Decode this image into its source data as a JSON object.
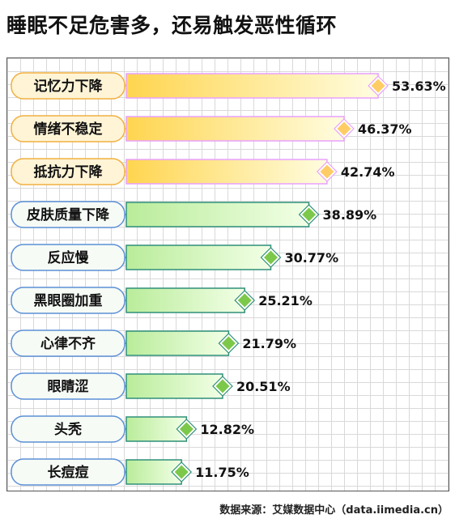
{
  "title": "睡眠不足危害多，还易触发恶性循环",
  "source": "数据来源：艾媒数据中心（data.iimedia.cn）",
  "colors": {
    "highlight_fill_start": "#ffd54f",
    "highlight_fill_end": "#fffde0",
    "highlight_border": "#e8a0ff",
    "highlight_label_bg": "#fff4d6",
    "highlight_label_border": "#f0b040",
    "highlight_marker": "#ffcc66",
    "normal_fill_start": "#b9ec9a",
    "normal_fill_end": "#f2ffe6",
    "normal_border": "#2f8f7a",
    "normal_label_bg": "#f6fbf6",
    "normal_label_border": "#5b8fd6",
    "normal_marker": "#7cc84a"
  },
  "chart_data": {
    "type": "bar",
    "orientation": "horizontal",
    "categories": [
      "记忆力下降",
      "情绪不稳定",
      "抵抗力下降",
      "皮肤质量下降",
      "反应慢",
      "黑眼圈加重",
      "心律不齐",
      "眼睛涩",
      "头秃",
      "长痘痘"
    ],
    "values": [
      53.63,
      46.37,
      42.74,
      38.89,
      30.77,
      25.21,
      21.79,
      20.51,
      12.82,
      11.75
    ],
    "value_labels": [
      "53.63%",
      "46.37%",
      "42.74%",
      "38.89%",
      "30.77%",
      "25.21%",
      "21.79%",
      "20.51%",
      "12.82%",
      "11.75%"
    ],
    "highlighted_count": 3,
    "unit": "%",
    "grid": true
  }
}
